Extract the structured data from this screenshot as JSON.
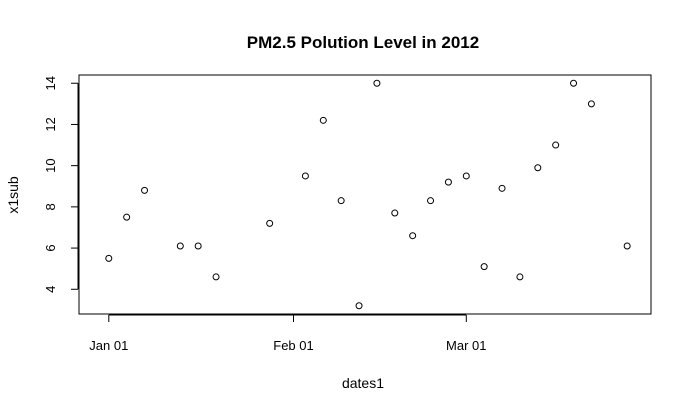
{
  "chart_data": {
    "type": "scatter",
    "title": "PM2.5 Polution Level in 2012",
    "xlabel": "dates1",
    "ylabel": "x1sub",
    "x_ticks": [
      {
        "label": "Jan 01",
        "value": "2012-01-01"
      },
      {
        "label": "Feb 01",
        "value": "2012-02-01"
      },
      {
        "label": "Mar 01",
        "value": "2012-03-01"
      }
    ],
    "y_ticks": [
      4,
      6,
      8,
      10,
      12,
      14
    ],
    "xlim": [
      "2011-12-27",
      "2012-04-01"
    ],
    "ylim": [
      2.8,
      14.4
    ],
    "grid": false,
    "marker": "open-circle",
    "points": [
      {
        "x": "2012-01-01",
        "y": 5.5
      },
      {
        "x": "2012-01-04",
        "y": 7.5
      },
      {
        "x": "2012-01-07",
        "y": 8.8
      },
      {
        "x": "2012-01-13",
        "y": 6.1
      },
      {
        "x": "2012-01-16",
        "y": 6.1
      },
      {
        "x": "2012-01-19",
        "y": 4.6
      },
      {
        "x": "2012-01-28",
        "y": 7.2
      },
      {
        "x": "2012-02-03",
        "y": 9.5
      },
      {
        "x": "2012-02-06",
        "y": 12.2
      },
      {
        "x": "2012-02-09",
        "y": 8.3
      },
      {
        "x": "2012-02-12",
        "y": 3.2
      },
      {
        "x": "2012-02-15",
        "y": 14.0
      },
      {
        "x": "2012-02-18",
        "y": 7.7
      },
      {
        "x": "2012-02-21",
        "y": 6.6
      },
      {
        "x": "2012-02-24",
        "y": 8.3
      },
      {
        "x": "2012-02-27",
        "y": 9.2
      },
      {
        "x": "2012-03-01",
        "y": 9.5
      },
      {
        "x": "2012-03-04",
        "y": 5.1
      },
      {
        "x": "2012-03-07",
        "y": 8.9
      },
      {
        "x": "2012-03-10",
        "y": 4.6
      },
      {
        "x": "2012-03-13",
        "y": 9.9
      },
      {
        "x": "2012-03-16",
        "y": 11.0
      },
      {
        "x": "2012-03-19",
        "y": 14.0
      },
      {
        "x": "2012-03-22",
        "y": 13.0
      },
      {
        "x": "2012-03-28",
        "y": 6.1
      }
    ]
  }
}
